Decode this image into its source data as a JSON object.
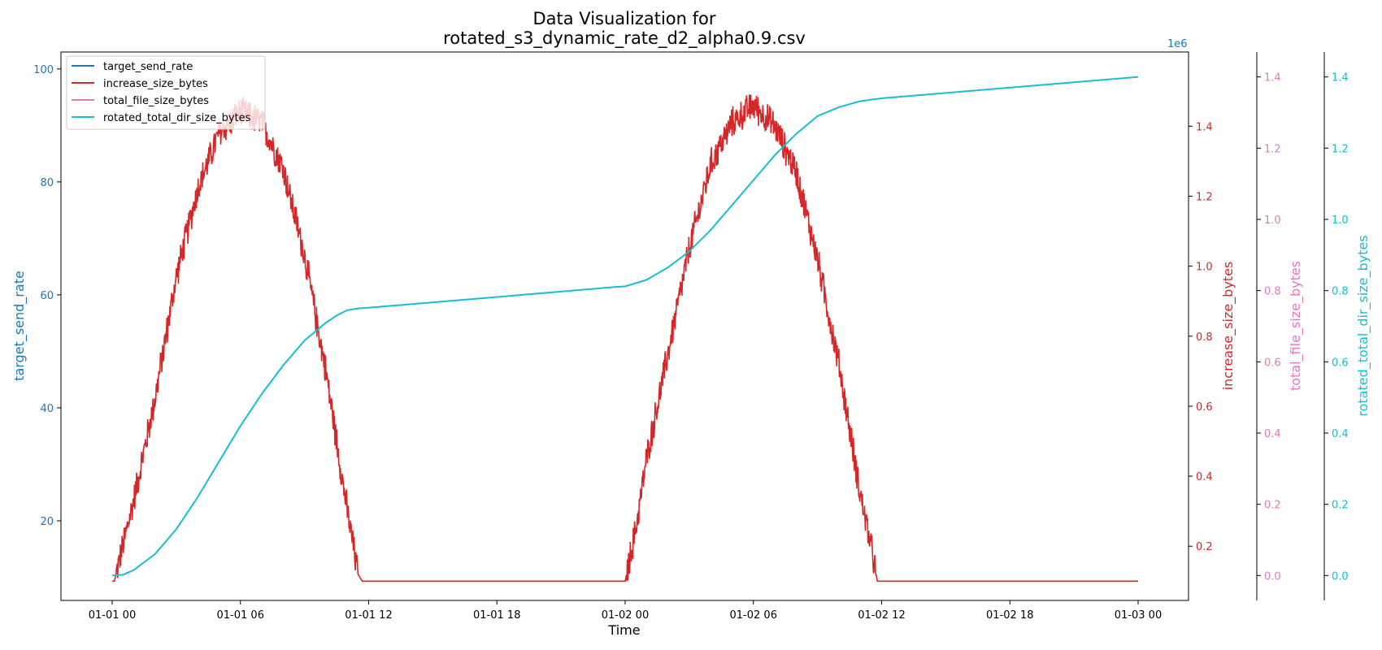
{
  "chart_data": {
    "type": "line",
    "title": "Data Visualization for",
    "subtitle": "rotated_s3_dynamic_rate_d2_alpha0.9.csv",
    "xlabel": "Time",
    "x_ticks": [
      {
        "hours": 0,
        "label": "01-01 00"
      },
      {
        "hours": 6,
        "label": "01-01 06"
      },
      {
        "hours": 12,
        "label": "01-01 12"
      },
      {
        "hours": 18,
        "label": "01-01 18"
      },
      {
        "hours": 24,
        "label": "01-02 00"
      },
      {
        "hours": 30,
        "label": "01-02 06"
      },
      {
        "hours": 36,
        "label": "01-02 12"
      },
      {
        "hours": 42,
        "label": "01-02 18"
      },
      {
        "hours": 48,
        "label": "01-03 00"
      }
    ],
    "axes": {
      "left": {
        "label": "target_send_rate",
        "color": "#1f77b4",
        "ylim": [
          5.9,
          103
        ],
        "ticks": [
          20,
          40,
          60,
          80,
          100
        ]
      },
      "right1": {
        "label": "increase_size_bytes",
        "color": "#d62728",
        "ylim": [
          0.045,
          1.612
        ],
        "ticks": [
          0.2,
          0.4,
          0.6,
          0.8,
          1.0,
          1.2,
          1.4
        ]
      },
      "right2": {
        "label": "total_file_size_bytes",
        "color": "#e377c2",
        "ylim": [
          -0.07,
          1.47
        ],
        "ticks": [
          0.0,
          0.2,
          0.4,
          0.6,
          0.8,
          1.0,
          1.2,
          1.4
        ]
      },
      "right3": {
        "label": "rotated_total_dir_size_bytes",
        "color": "#17becf",
        "ylim": [
          -0.07,
          1.47
        ],
        "ticks": [
          0.0,
          0.2,
          0.4,
          0.6,
          0.8,
          1.0,
          1.2,
          1.4
        ]
      }
    },
    "offset_text": "1e6",
    "legend": {
      "position": "top-left",
      "entries": [
        {
          "name": "target_send_rate",
          "color": "#1f77b4"
        },
        {
          "name": "increase_size_bytes",
          "color": "#d62728"
        },
        {
          "name": "total_file_size_bytes",
          "color": "#e377c2"
        },
        {
          "name": "rotated_total_dir_size_bytes",
          "color": "#17becf"
        }
      ]
    },
    "series": [
      {
        "name": "increase_size_bytes",
        "axis": "right1",
        "color": "#d62728",
        "noise": 0.05,
        "envelope": [
          [
            0,
            0.1
          ],
          [
            0.1,
            0.1
          ],
          [
            0.5,
            0.2
          ],
          [
            1,
            0.33
          ],
          [
            2,
            0.62
          ],
          [
            3,
            0.97
          ],
          [
            4,
            1.22
          ],
          [
            5,
            1.38
          ],
          [
            6,
            1.44
          ],
          [
            7,
            1.41
          ],
          [
            8,
            1.28
          ],
          [
            9,
            1.03
          ],
          [
            10,
            0.7
          ],
          [
            11,
            0.3
          ],
          [
            11.5,
            0.12
          ],
          [
            11.7,
            0.1
          ],
          [
            24.0,
            0.1
          ],
          [
            24.5,
            0.25
          ],
          [
            25,
            0.45
          ],
          [
            26,
            0.75
          ],
          [
            27,
            1.05
          ],
          [
            28,
            1.29
          ],
          [
            29,
            1.41
          ],
          [
            30,
            1.46
          ],
          [
            31,
            1.4
          ],
          [
            32,
            1.27
          ],
          [
            33,
            1.02
          ],
          [
            34,
            0.72
          ],
          [
            35,
            0.35
          ],
          [
            35.5,
            0.2
          ],
          [
            35.8,
            0.1
          ],
          [
            48,
            0.1
          ]
        ]
      },
      {
        "name": "rotated_total_dir_size_bytes",
        "axis": "right3",
        "color": "#17becf",
        "points": [
          [
            0,
            0.0
          ],
          [
            0.5,
            0.002
          ],
          [
            1,
            0.015
          ],
          [
            2,
            0.06
          ],
          [
            3,
            0.13
          ],
          [
            4,
            0.22
          ],
          [
            5,
            0.32
          ],
          [
            6,
            0.42
          ],
          [
            7,
            0.51
          ],
          [
            8,
            0.59
          ],
          [
            9,
            0.66
          ],
          [
            10,
            0.71
          ],
          [
            10.5,
            0.73
          ],
          [
            11,
            0.745
          ],
          [
            11.5,
            0.75
          ],
          [
            12,
            0.752
          ],
          [
            18,
            0.782
          ],
          [
            23.5,
            0.81
          ],
          [
            24,
            0.812
          ],
          [
            25,
            0.83
          ],
          [
            26,
            0.865
          ],
          [
            27,
            0.91
          ],
          [
            28,
            0.97
          ],
          [
            29,
            1.04
          ],
          [
            30,
            1.11
          ],
          [
            31,
            1.18
          ],
          [
            32,
            1.24
          ],
          [
            33,
            1.29
          ],
          [
            34,
            1.315
          ],
          [
            35,
            1.332
          ],
          [
            36,
            1.34
          ],
          [
            42,
            1.37
          ],
          [
            48,
            1.4
          ]
        ]
      }
    ]
  }
}
